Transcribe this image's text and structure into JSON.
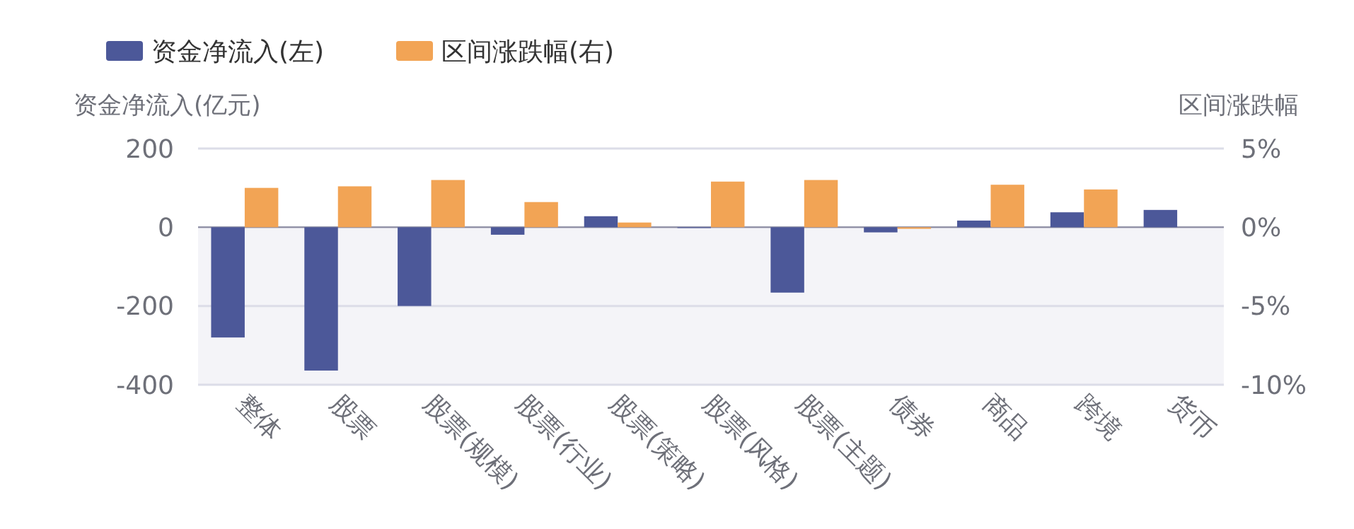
{
  "chart_data": {
    "type": "bar",
    "ylabel": "资金净流入(亿元)",
    "y2label": "区间涨跌幅",
    "categories": [
      "整体",
      "股票",
      "股票(规模)",
      "股票(行业)",
      "股票(策略)",
      "股票(风格)",
      "股票(主题)",
      "债券",
      "商品",
      "跨境",
      "货币"
    ],
    "series": [
      {
        "name": "资金净流入(左)",
        "color": "#4c5899",
        "values": [
          -280,
          -364,
          -200,
          -19,
          28,
          -2,
          -166,
          -13,
          17,
          38,
          44
        ]
      },
      {
        "name": "区间涨跌幅(右)",
        "color": "#f2a455",
        "axis": "y2",
        "values": [
          2.5,
          2.6,
          3.0,
          1.6,
          0.3,
          2.9,
          3.0,
          -0.1,
          2.7,
          2.4,
          null
        ]
      }
    ],
    "ylim": [
      -400,
      200
    ],
    "yticks": [
      -400,
      -200,
      0,
      200
    ],
    "y2lim": [
      -10,
      5
    ],
    "y2ticks": [
      {
        "value": -10,
        "label": "-10%"
      },
      {
        "value": -5,
        "label": "-5%"
      },
      {
        "value": 0,
        "label": "0%"
      },
      {
        "value": 5,
        "label": "5%"
      }
    ],
    "bands": [
      {
        "axis": "y",
        "from": -400,
        "to": 0,
        "color": "#f4f4f8"
      }
    ],
    "grid": "y",
    "legend": "top left"
  }
}
